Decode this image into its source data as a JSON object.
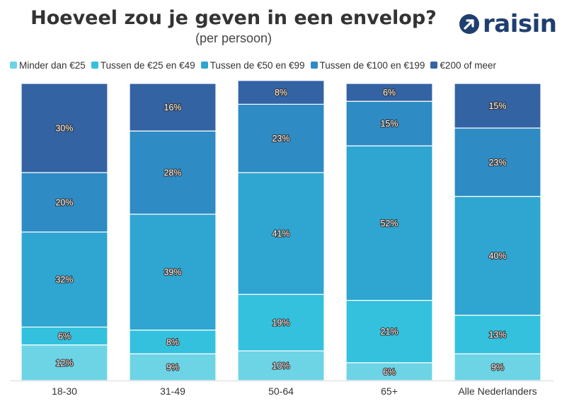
{
  "header": {
    "title": "Hoeveel zou je geven in een envelop?",
    "subtitle": "(per persoon)",
    "brand": "raisin"
  },
  "chart_data": {
    "type": "bar",
    "stacked": true,
    "percent": true,
    "title": "Hoeveel zou je geven in een envelop?",
    "subtitle": "(per persoon)",
    "xlabel": "",
    "ylabel": "",
    "ylim": [
      0,
      100
    ],
    "grid": false,
    "legend_position": "top",
    "categories": [
      "18-30",
      "31-49",
      "50-64",
      "65+",
      "Alle Nederlanders"
    ],
    "series": [
      {
        "name": "Minder dan €25",
        "color": "#6dd4e6",
        "values": [
          12,
          9,
          10,
          6,
          9
        ]
      },
      {
        "name": "Tussen de €25 en €49",
        "color": "#33c1de",
        "values": [
          6,
          8,
          19,
          21,
          13
        ]
      },
      {
        "name": "Tussen de €50 en €99",
        "color": "#2fa5d1",
        "values": [
          32,
          39,
          41,
          52,
          40
        ]
      },
      {
        "name": "Tussen de €100 en €199",
        "color": "#2e8bc4",
        "values": [
          20,
          28,
          23,
          15,
          23
        ]
      },
      {
        "name": "€200 of meer",
        "color": "#3463a4",
        "values": [
          30,
          16,
          8,
          6,
          15
        ]
      }
    ],
    "value_suffix": "%"
  }
}
